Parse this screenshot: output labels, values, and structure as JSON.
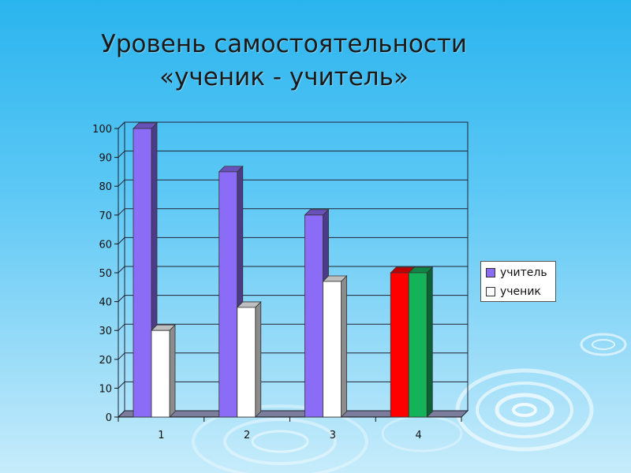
{
  "title_line1": "Уровень самостоятельности",
  "title_line2": "«ученик - учитель»",
  "legend": {
    "teacher": "учитель",
    "student": "ученик"
  },
  "colors": {
    "teacher": "#8b6cf7",
    "student": "#ffffff",
    "group4_teacher": "#ff0000",
    "group4_student": "#14b35a"
  },
  "chart_data": {
    "type": "bar",
    "categories": [
      "1",
      "2",
      "3",
      "4"
    ],
    "series": [
      {
        "name": "учитель",
        "values": [
          100,
          85,
          70,
          50
        ]
      },
      {
        "name": "ученик",
        "values": [
          30,
          38,
          47,
          50
        ]
      }
    ],
    "yticks": [
      "0",
      "10",
      "20",
      "30",
      "40",
      "50",
      "60",
      "70",
      "80",
      "90",
      "100"
    ],
    "ylim": [
      0,
      100
    ],
    "grid": true,
    "legend_position": "right"
  }
}
